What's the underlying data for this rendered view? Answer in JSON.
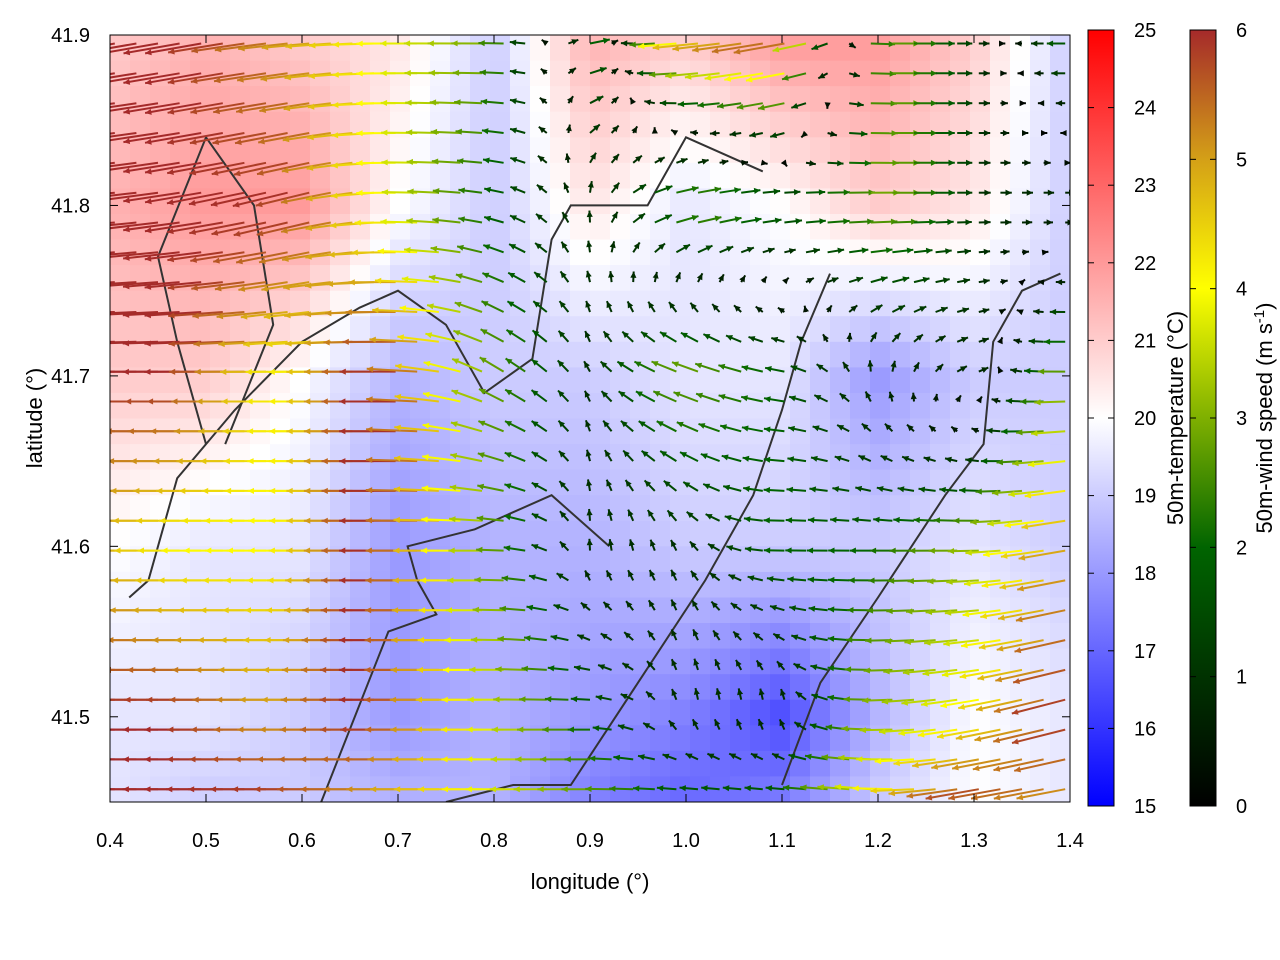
{
  "chart_data": {
    "type": "heatmap",
    "subtype": "vector-field-over-heatmap",
    "xlabel": "longitude (°)",
    "ylabel": "latitude (°)",
    "xlim": [
      0.4,
      1.4
    ],
    "ylim": [
      41.45,
      41.9
    ],
    "xticks": [
      "0.4",
      "0.5",
      "0.6",
      "0.7",
      "0.8",
      "0.9",
      "1.0",
      "1.1",
      "1.2",
      "1.3",
      "1.4"
    ],
    "yticks": [
      "41.5",
      "41.6",
      "41.7",
      "41.8",
      "41.9"
    ],
    "temperature": {
      "label": "50m-temperature (°C)",
      "range": [
        15,
        25
      ],
      "ticks": [
        "15",
        "16",
        "17",
        "18",
        "19",
        "20",
        "21",
        "22",
        "23",
        "24",
        "25"
      ],
      "colors": [
        "#0000ff",
        "#ffffff",
        "#ff0000"
      ],
      "lon": [
        0.4,
        0.5,
        0.6,
        0.7,
        0.8,
        0.9,
        1.0,
        1.1,
        1.2,
        1.3,
        1.4
      ],
      "lat": [
        41.9,
        41.8,
        41.7,
        41.6,
        41.5,
        41.45
      ],
      "values": [
        [
          21,
          21.5,
          21,
          20.5,
          19,
          21.5,
          21,
          22,
          22,
          21,
          19
        ],
        [
          21.5,
          22,
          22,
          20,
          19,
          20.5,
          19.5,
          20,
          21,
          20.5,
          19
        ],
        [
          21,
          21,
          20,
          18.5,
          19,
          19,
          19.5,
          19.5,
          18,
          19,
          19
        ],
        [
          20,
          19.5,
          19.5,
          18,
          18.5,
          18.5,
          19,
          19,
          19,
          19.5,
          19
        ],
        [
          19.5,
          19.5,
          19,
          18,
          18.5,
          18,
          17.5,
          16.5,
          18.5,
          20,
          19.5
        ],
        [
          19.5,
          19,
          19,
          18.5,
          18.5,
          17.5,
          17,
          17.5,
          19,
          20,
          19.5
        ]
      ]
    },
    "wind": {
      "label": "50m-wind speed (m s-1)",
      "label_main": "50m-wind speed (m s",
      "label_sup": "-1",
      "label_end": ")",
      "range": [
        0,
        6
      ],
      "ticks": [
        "0",
        "1",
        "2",
        "3",
        "4",
        "5",
        "6"
      ],
      "lon": [
        0.4,
        0.5,
        0.6,
        0.7,
        0.8,
        0.9,
        1.0,
        1.1,
        1.2,
        1.3,
        1.4
      ],
      "lat": [
        41.9,
        41.8,
        41.7,
        41.6,
        41.5,
        41.45
      ],
      "speed": [
        [
          6,
          6,
          5,
          4,
          3,
          2,
          5,
          6,
          3,
          1,
          2
        ],
        [
          6,
          6,
          6,
          4,
          2,
          1,
          3,
          2,
          3,
          1,
          1
        ],
        [
          6,
          6,
          4,
          6,
          3,
          1,
          3,
          2,
          1,
          1,
          3
        ],
        [
          5,
          4,
          4,
          6,
          3,
          1,
          1,
          2,
          2,
          3,
          5
        ],
        [
          6,
          6,
          5,
          6,
          4,
          2,
          1,
          1,
          3,
          4,
          6
        ],
        [
          6,
          6,
          6,
          5,
          4,
          3,
          2,
          2,
          4,
          6,
          5
        ]
      ],
      "direction_deg": [
        [
          190,
          190,
          185,
          180,
          180,
          10,
          185,
          190,
          0,
          0,
          180
        ],
        [
          185,
          190,
          195,
          180,
          170,
          90,
          10,
          5,
          0,
          0,
          0
        ],
        [
          180,
          180,
          180,
          180,
          150,
          120,
          160,
          170,
          90,
          20,
          180
        ],
        [
          180,
          180,
          180,
          180,
          180,
          90,
          120,
          180,
          180,
          180,
          190
        ],
        [
          180,
          180,
          180,
          180,
          180,
          180,
          100,
          90,
          180,
          190,
          195
        ],
        [
          180,
          180,
          180,
          180,
          180,
          180,
          180,
          180,
          175,
          190,
          190
        ]
      ]
    },
    "contours": [
      [
        [
          0.42,
          41.57
        ],
        [
          0.44,
          41.58
        ],
        [
          0.47,
          41.64
        ],
        [
          0.53,
          41.68
        ],
        [
          0.6,
          41.72
        ],
        [
          0.66,
          41.74
        ],
        [
          0.7,
          41.75
        ],
        [
          0.75,
          41.73
        ],
        [
          0.79,
          41.69
        ],
        [
          0.84,
          41.71
        ],
        [
          0.86,
          41.78
        ],
        [
          0.88,
          41.8
        ],
        [
          0.96,
          41.8
        ],
        [
          1.0,
          41.84
        ],
        [
          1.08,
          41.82
        ]
      ],
      [
        [
          0.5,
          41.66
        ],
        [
          0.47,
          41.72
        ],
        [
          0.45,
          41.77
        ],
        [
          0.5,
          41.84
        ],
        [
          0.55,
          41.8
        ],
        [
          0.57,
          41.73
        ],
        [
          0.52,
          41.66
        ]
      ],
      [
        [
          0.75,
          41.45
        ],
        [
          0.82,
          41.46
        ],
        [
          0.88,
          41.46
        ],
        [
          0.95,
          41.52
        ],
        [
          1.02,
          41.58
        ],
        [
          1.07,
          41.63
        ],
        [
          1.1,
          41.68
        ],
        [
          1.12,
          41.72
        ],
        [
          1.15,
          41.76
        ]
      ],
      [
        [
          1.1,
          41.46
        ],
        [
          1.14,
          41.52
        ],
        [
          1.2,
          41.57
        ],
        [
          1.27,
          41.63
        ],
        [
          1.31,
          41.66
        ],
        [
          1.32,
          41.72
        ],
        [
          1.35,
          41.75
        ],
        [
          1.39,
          41.76
        ]
      ],
      [
        [
          0.62,
          41.45
        ],
        [
          0.69,
          41.55
        ],
        [
          0.74,
          41.56
        ],
        [
          0.72,
          41.58
        ],
        [
          0.71,
          41.6
        ],
        [
          0.78,
          41.61
        ],
        [
          0.82,
          41.62
        ],
        [
          0.86,
          41.63
        ],
        [
          0.92,
          41.6
        ]
      ]
    ]
  }
}
